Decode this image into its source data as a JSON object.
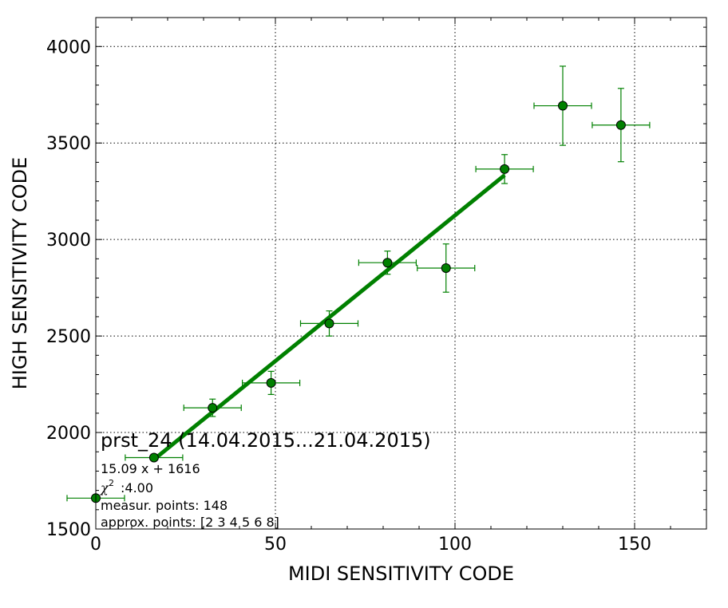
{
  "chart_data": {
    "type": "scatter",
    "title": "",
    "xlabel": "MIDI SENSITIVITY CODE",
    "ylabel": "HIGH SENSITIVITY CODE",
    "xlim": [
      0,
      170
    ],
    "ylim": [
      1500,
      4150
    ],
    "x_ticks": [
      0,
      50,
      100,
      150
    ],
    "y_ticks": [
      1500,
      2000,
      2500,
      3000,
      3500,
      4000
    ],
    "grid": true,
    "colors": {
      "series": "#008000",
      "marker_edge": "#000000"
    },
    "points": [
      {
        "x": 0,
        "y": 1660,
        "xerr": 8,
        "yerr": 0
      },
      {
        "x": 16.2,
        "y": 1870,
        "xerr": 8,
        "yerr": 0
      },
      {
        "x": 32.5,
        "y": 2128,
        "xerr": 8,
        "yerr": 45
      },
      {
        "x": 48.8,
        "y": 2257,
        "xerr": 8,
        "yerr": 60
      },
      {
        "x": 65.0,
        "y": 2565,
        "xerr": 8,
        "yerr": 65
      },
      {
        "x": 81.2,
        "y": 2880,
        "xerr": 8,
        "yerr": 60
      },
      {
        "x": 97.5,
        "y": 2852,
        "xerr": 8,
        "yerr": 125
      },
      {
        "x": 113.8,
        "y": 3365,
        "xerr": 8,
        "yerr": 75
      },
      {
        "x": 130.0,
        "y": 3693,
        "xerr": 8,
        "yerr": 205
      },
      {
        "x": 146.2,
        "y": 3593,
        "xerr": 8,
        "yerr": 190
      }
    ],
    "fit": {
      "slope": 15.09,
      "intercept": 1616,
      "x_start": 16.2,
      "x_end": 113.8
    },
    "annotations": {
      "title": "prst_24 (14.04.2015...21.04.2015)",
      "equation": "15.09 x + 1616",
      "chi2_value": ":4.00",
      "measur_points": "measur. points: 148",
      "approx_points": "approx. points: [2 3 4 5 6 8]"
    }
  }
}
